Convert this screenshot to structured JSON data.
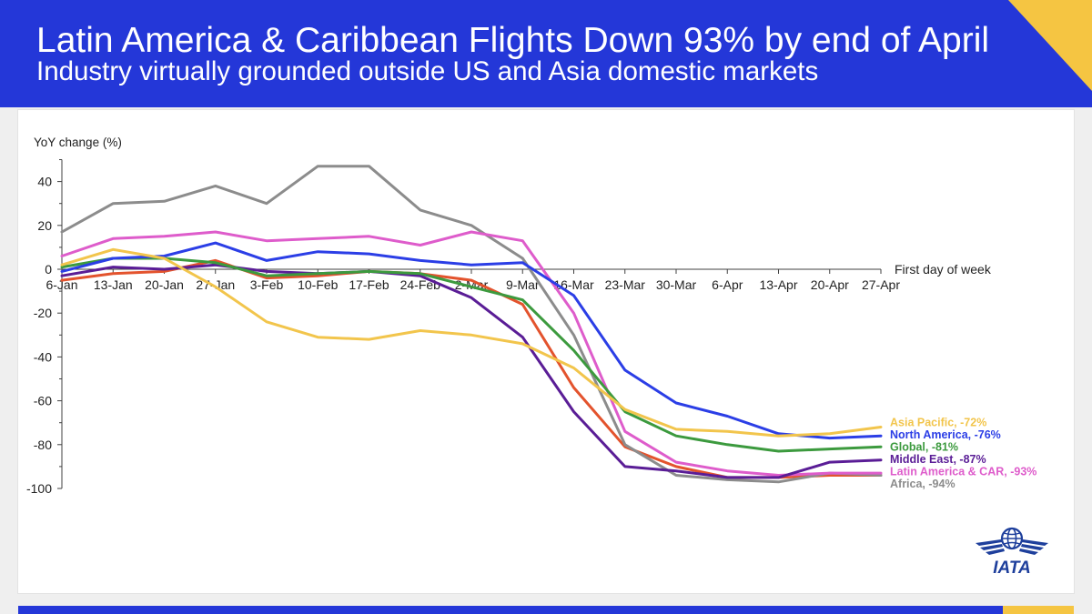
{
  "colors": {
    "header_bg": "#2437d8",
    "accent_yellow": "#f5c542",
    "page_bg": "#efefef",
    "axis": "#404040",
    "logo": "#1e3f9c"
  },
  "header": {
    "title": "Latin America & Caribbean Flights Down 93% by end of April",
    "subtitle": "Industry virtually grounded outside US and Asia domestic markets"
  },
  "logo": {
    "icon": "iata-globe-wings-icon",
    "text": "IATA"
  },
  "chart_data": {
    "type": "line",
    "ylabel": "YoY change (%)",
    "xlabel": "First day of week",
    "ylim": [
      -100,
      50
    ],
    "yticks": [
      40,
      20,
      0,
      -20,
      -40,
      -60,
      -80,
      -100
    ],
    "grid": false,
    "legend": "right",
    "categories": [
      "6-Jan",
      "13-Jan",
      "20-Jan",
      "27-Jan",
      "3-Feb",
      "10-Feb",
      "17-Feb",
      "24-Feb",
      "2-Mar",
      "9-Mar",
      "16-Mar",
      "23-Mar",
      "30-Mar",
      "6-Apr",
      "13-Apr",
      "20-Apr",
      "27-Apr"
    ],
    "series": [
      {
        "label": "Asia Pacific, -72%",
        "color": "#f2c54c",
        "values": [
          2,
          9,
          5,
          -8,
          -24,
          -31,
          -32,
          -28,
          -30,
          -34,
          -45,
          -64,
          -73,
          -74,
          -76,
          -75,
          -72
        ]
      },
      {
        "label": "North America, -76%",
        "color": "#2b3ee6",
        "values": [
          -1,
          5,
          6,
          12,
          4,
          8,
          7,
          4,
          2,
          3,
          -12,
          -46,
          -61,
          -67,
          -75,
          -77,
          -76
        ]
      },
      {
        "label": "Global, -81%",
        "color": "#3c9a3e",
        "values": [
          1,
          5,
          5,
          3,
          -3,
          -2,
          -1,
          -2,
          -8,
          -14,
          -37,
          -65,
          -76,
          -80,
          -83,
          -82,
          -81
        ]
      },
      {
        "label": "Middle East, -87%",
        "color": "#5a1d96",
        "values": [
          -3,
          1,
          0,
          2,
          -1,
          -2,
          -1,
          -3,
          -13,
          -31,
          -65,
          -90,
          -92,
          -95,
          -95,
          -88,
          -87
        ]
      },
      {
        "label": "Latin America & CAR, -93%",
        "color": "#de5ccb",
        "values": [
          6,
          14,
          15,
          17,
          13,
          14,
          15,
          11,
          17,
          13,
          -20,
          -74,
          -88,
          -92,
          -94,
          -93,
          -93
        ]
      },
      {
        "label": "Africa, -94%",
        "color": "#8c8c8c",
        "values": [
          17,
          30,
          31,
          38,
          30,
          47,
          47,
          27,
          20,
          5,
          -30,
          -80,
          -94,
          -96,
          -97,
          -93,
          -94
        ]
      },
      {
        "color": "#e3532d",
        "values": [
          -5,
          -2,
          -1,
          4,
          -4,
          -3,
          -1,
          -2,
          -5,
          -16,
          -54,
          -81,
          -90,
          -95,
          -95,
          -94,
          -94
        ]
      }
    ]
  }
}
